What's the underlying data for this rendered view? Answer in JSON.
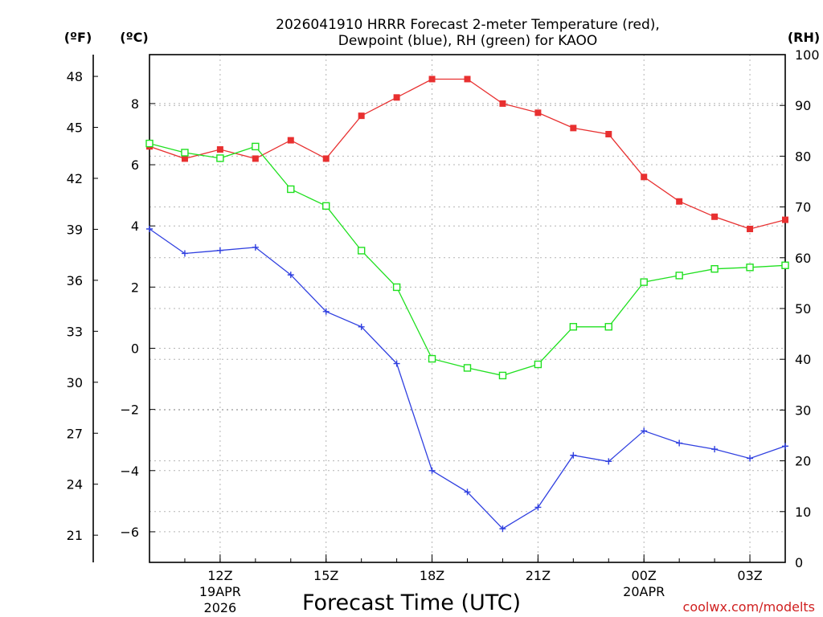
{
  "chart_data": {
    "type": "line",
    "title_line1": "2026041910 HRRR Forecast 2-meter Temperature (red),",
    "title_line2": "Dewpoint (blue), RH (green) for KAOO",
    "xlabel": "Forecast Time (UTC)",
    "unit_f": "(ºF)",
    "unit_c": "(ºC)",
    "unit_rh": "(RH)",
    "credit": "coolwx.com/modelts",
    "x_hours": [
      10,
      11,
      12,
      13,
      14,
      15,
      16,
      17,
      18,
      19,
      20,
      21,
      22,
      23,
      24,
      25,
      26,
      27,
      28
    ],
    "xlim": [
      10,
      28
    ],
    "x_ticks": [
      {
        "h": 12,
        "label": "12Z",
        "sub1": "19APR",
        "sub2": "2026"
      },
      {
        "h": 15,
        "label": "15Z",
        "sub1": "",
        "sub2": ""
      },
      {
        "h": 18,
        "label": "18Z",
        "sub1": "",
        "sub2": ""
      },
      {
        "h": 21,
        "label": "21Z",
        "sub1": "",
        "sub2": ""
      },
      {
        "h": 24,
        "label": "00Z",
        "sub1": "20APR",
        "sub2": ""
      },
      {
        "h": 27,
        "label": "03Z",
        "sub1": "",
        "sub2": ""
      }
    ],
    "ylim_c": [
      -7.0,
      9.6
    ],
    "y_ticks_c": [
      -6,
      -4,
      -2,
      0,
      2,
      4,
      6,
      8
    ],
    "y_tick_labels_c": [
      "−6",
      "−4",
      "−2",
      "0",
      "2",
      "4",
      "6",
      "8"
    ],
    "y_ticks_f": [
      21,
      24,
      27,
      30,
      33,
      36,
      39,
      42,
      45,
      48
    ],
    "ylim_rh": [
      0,
      100
    ],
    "y_ticks_rh": [
      0,
      10,
      20,
      30,
      40,
      50,
      60,
      70,
      80,
      90,
      100
    ],
    "series": [
      {
        "name": "Temperature",
        "unit": "C",
        "color": "#e83030",
        "marker": "filled-square",
        "values": [
          6.6,
          6.2,
          6.5,
          6.2,
          6.8,
          6.2,
          7.6,
          8.2,
          8.8,
          8.8,
          8.0,
          7.7,
          7.2,
          7.0,
          5.6,
          4.8,
          4.3,
          3.9,
          4.2
        ]
      },
      {
        "name": "Dewpoint",
        "unit": "C",
        "color": "#3040e0",
        "marker": "plus",
        "values": [
          3.9,
          3.1,
          3.2,
          3.3,
          2.4,
          1.2,
          0.7,
          -0.5,
          -4.0,
          -4.7,
          -5.9,
          -5.2,
          -3.5,
          -3.7,
          -2.7,
          -3.1,
          -3.3,
          -3.6,
          -3.2
        ]
      },
      {
        "name": "RH",
        "unit": "%",
        "color": "#20e020",
        "marker": "open-square",
        "values": [
          82.5,
          80.7,
          79.6,
          81.9,
          73.5,
          70.2,
          61.4,
          54.2,
          40.1,
          38.3,
          36.8,
          39.0,
          46.4,
          46.4,
          55.2,
          56.5,
          57.8,
          58.1,
          58.5
        ]
      }
    ]
  }
}
